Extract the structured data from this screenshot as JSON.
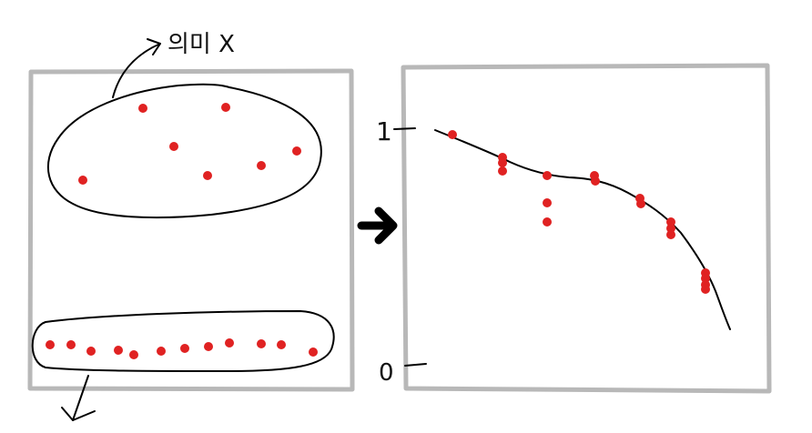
{
  "annotation_top": "의미 X",
  "axis": {
    "top_label": "1",
    "bottom_label": "0"
  },
  "colors": {
    "dot": "#e02222",
    "ink": "#000000",
    "frame": "#b8b8b8"
  },
  "icons": {
    "arrow": "right-arrow-icon"
  }
}
